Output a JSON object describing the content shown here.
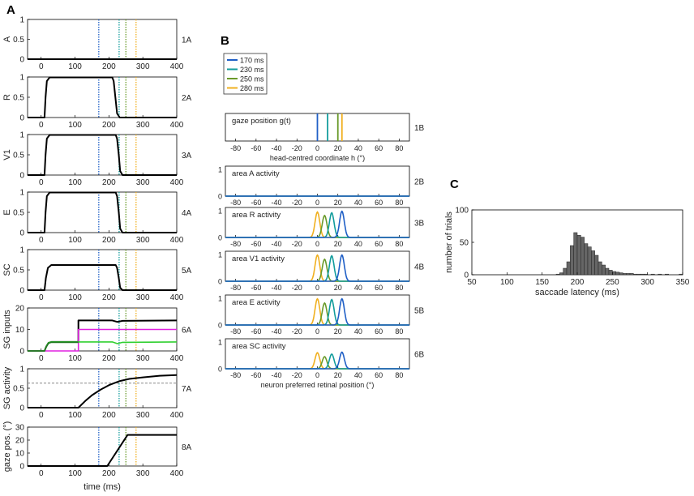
{
  "panel_labels": {
    "a": "A",
    "b": "B",
    "c": "C"
  },
  "colors": {
    "t170": "#1f5fc6",
    "t230": "#129c9c",
    "t250": "#6a9a2a",
    "t280": "#f0b020",
    "black": "#000000",
    "magenta": "#e020e0",
    "green": "#30d030",
    "darkgreen": "#207a20",
    "gray_bar": "#666666"
  },
  "legend": {
    "entries": [
      {
        "label": "170 ms",
        "color_key": "t170"
      },
      {
        "label": "230 ms",
        "color_key": "t230"
      },
      {
        "label": "250 ms",
        "color_key": "t250"
      },
      {
        "label": "280 ms",
        "color_key": "t280"
      }
    ]
  },
  "chart_data": [
    {
      "id": "panelA",
      "type": "line",
      "times_ms": [
        170,
        230,
        250,
        280
      ],
      "xlim": [
        -40,
        400
      ],
      "xticks": [
        0,
        100,
        200,
        300,
        400
      ],
      "xlabel": "time (ms)",
      "subplots": [
        {
          "ylabel": "A",
          "tag": "1A",
          "ylim": [
            0,
            1
          ],
          "yticks": [
            0,
            0.5,
            1
          ],
          "ytick_labels": [
            "0",
            "0.5",
            "1"
          ],
          "series": [
            {
              "name": "A",
              "color_key": "black",
              "points": [
                [
                  -40,
                  0
                ],
                [
                  400,
                  0
                ]
              ]
            }
          ]
        },
        {
          "ylabel": "R",
          "tag": "2A",
          "ylim": [
            0,
            1
          ],
          "yticks": [
            0,
            0.5,
            1
          ],
          "ytick_labels": [
            "0",
            "0.5",
            "1"
          ],
          "series": [
            {
              "name": "R",
              "color_key": "black",
              "points": [
                [
                  -40,
                  0
                ],
                [
                  10,
                  0
                ],
                [
                  13,
                  0.5
                ],
                [
                  17,
                  0.9
                ],
                [
                  25,
                  0.99
                ],
                [
                  210,
                  0.99
                ],
                [
                  214,
                  0.9
                ],
                [
                  219,
                  0.5
                ],
                [
                  224,
                  0.1
                ],
                [
                  232,
                  0
                ],
                [
                  400,
                  0
                ]
              ]
            }
          ]
        },
        {
          "ylabel": "V1",
          "tag": "3A",
          "ylim": [
            0,
            1
          ],
          "yticks": [
            0,
            0.5,
            1
          ],
          "ytick_labels": [
            "0",
            "0.5",
            "1"
          ],
          "series": [
            {
              "name": "V1",
              "color_key": "black",
              "points": [
                [
                  -40,
                  0
                ],
                [
                  10,
                  0
                ],
                [
                  13,
                  0.5
                ],
                [
                  17,
                  0.9
                ],
                [
                  25,
                  0.99
                ],
                [
                  220,
                  0.99
                ],
                [
                  224,
                  0.9
                ],
                [
                  229,
                  0.5
                ],
                [
                  233,
                  0.1
                ],
                [
                  240,
                  0
                ],
                [
                  400,
                  0
                ]
              ]
            }
          ]
        },
        {
          "ylabel": "E",
          "tag": "4A",
          "ylim": [
            0,
            1
          ],
          "yticks": [
            0,
            0.5,
            1
          ],
          "ytick_labels": [
            "0",
            "0.5",
            "1"
          ],
          "series": [
            {
              "name": "E",
              "color_key": "black",
              "points": [
                [
                  -40,
                  0
                ],
                [
                  10,
                  0
                ],
                [
                  13,
                  0.5
                ],
                [
                  17,
                  0.9
                ],
                [
                  25,
                  0.99
                ],
                [
                  220,
                  0.99
                ],
                [
                  224,
                  0.9
                ],
                [
                  229,
                  0.5
                ],
                [
                  233,
                  0.1
                ],
                [
                  240,
                  0
                ],
                [
                  400,
                  0
                ]
              ]
            }
          ]
        },
        {
          "ylabel": "SC",
          "tag": "5A",
          "ylim": [
            0,
            1
          ],
          "yticks": [
            0,
            0.5,
            1
          ],
          "ytick_labels": [
            "0",
            "0.5",
            "1"
          ],
          "series": [
            {
              "name": "SC",
              "color_key": "black",
              "points": [
                [
                  -40,
                  0
                ],
                [
                  10,
                  0
                ],
                [
                  14,
                  0.3
                ],
                [
                  20,
                  0.55
                ],
                [
                  30,
                  0.62
                ],
                [
                  220,
                  0.62
                ],
                [
                  224,
                  0.55
                ],
                [
                  229,
                  0.3
                ],
                [
                  233,
                  0.06
                ],
                [
                  240,
                  0
                ],
                [
                  400,
                  0
                ]
              ]
            }
          ]
        },
        {
          "ylabel": "SG inputs",
          "tag": "6A",
          "ylim": [
            0,
            20
          ],
          "yticks": [
            0,
            10,
            20
          ],
          "ytick_labels": [
            "0",
            "10",
            "20"
          ],
          "series": [
            {
              "name": "total",
              "color_key": "black",
              "points": [
                [
                  -40,
                  0
                ],
                [
                  10,
                  0
                ],
                [
                  15,
                  2
                ],
                [
                  22,
                  3.8
                ],
                [
                  30,
                  4.2
                ],
                [
                  110,
                  4.2
                ],
                [
                  110,
                  14.2
                ],
                [
                  210,
                  14.2
                ],
                [
                  225,
                  13.5
                ],
                [
                  240,
                  14
                ],
                [
                  400,
                  14.2
                ]
              ]
            },
            {
              "name": "magenta",
              "color_key": "magenta",
              "points": [
                [
                  -40,
                  0
                ],
                [
                  110,
                  0
                ],
                [
                  110,
                  10
                ],
                [
                  400,
                  10
                ]
              ]
            },
            {
              "name": "green",
              "color_key": "green",
              "points": [
                [
                  -40,
                  0
                ],
                [
                  10,
                  0
                ],
                [
                  15,
                  2
                ],
                [
                  22,
                  3.8
                ],
                [
                  30,
                  4.2
                ],
                [
                  210,
                  4.2
                ],
                [
                  225,
                  3.4
                ],
                [
                  240,
                  4
                ],
                [
                  400,
                  4.2
                ]
              ]
            },
            {
              "name": "darkgreen",
              "color_key": "darkgreen",
              "points": [
                [
                  -40,
                  0
                ],
                [
                  10,
                  0
                ],
                [
                  15,
                  1.8
                ],
                [
                  22,
                  3.6
                ],
                [
                  30,
                  4
                ],
                [
                  110,
                  4
                ]
              ]
            }
          ]
        },
        {
          "ylabel": "SG activity",
          "tag": "7A",
          "ylim": [
            0,
            1
          ],
          "yticks": [
            0,
            0.5,
            1
          ],
          "ytick_labels": [
            "0",
            "0.5",
            "1"
          ],
          "threshold": 0.63,
          "series": [
            {
              "name": "SG",
              "color_key": "black",
              "points": [
                [
                  -40,
                  0
                ],
                [
                  110,
                  0
                ],
                [
                  130,
                  0.17
                ],
                [
                  150,
                  0.32
                ],
                [
                  175,
                  0.46
                ],
                [
                  200,
                  0.58
                ],
                [
                  230,
                  0.68
                ],
                [
                  260,
                  0.74
                ],
                [
                  300,
                  0.78
                ],
                [
                  350,
                  0.82
                ],
                [
                  400,
                  0.84
                ]
              ]
            }
          ]
        },
        {
          "ylabel": "gaze pos. (°)",
          "tag": "8A",
          "ylim": [
            0,
            30
          ],
          "yticks": [
            0,
            10,
            20,
            30
          ],
          "ytick_labels": [
            "0",
            "10",
            "20",
            "30"
          ],
          "series": [
            {
              "name": "gaze",
              "color_key": "black",
              "points": [
                [
                  -40,
                  0
                ],
                [
                  195,
                  0
                ],
                [
                  255,
                  24
                ],
                [
                  400,
                  24
                ]
              ]
            }
          ]
        }
      ]
    },
    {
      "id": "panelB",
      "type": "line",
      "xlim": [
        -90,
        90
      ],
      "xticks": [
        -80,
        -60,
        -40,
        -20,
        0,
        20,
        40,
        60,
        80
      ],
      "gaze_subplot": {
        "tag": "1B",
        "inner_label": "gaze position g(t)",
        "xlabel": "head-centred coordinate h (°)",
        "gaze_positions": [
          0,
          10,
          20,
          24
        ]
      },
      "activity_subplots": [
        {
          "tag": "2B",
          "inner_label": "area A activity",
          "ylim": [
            0,
            1
          ],
          "yticks": [
            0,
            1
          ],
          "ytick_labels": [
            "0",
            "1"
          ],
          "bumps": [
            {
              "color_key": "t170",
              "center": 0,
              "amp": 0
            },
            {
              "color_key": "t230",
              "center": 0,
              "amp": 0
            },
            {
              "color_key": "t250",
              "center": 0,
              "amp": 0
            },
            {
              "color_key": "t280",
              "center": 0,
              "amp": 0
            }
          ]
        },
        {
          "tag": "3B",
          "inner_label": "area R activity",
          "ylim": [
            0,
            1
          ],
          "yticks": [
            0,
            1
          ],
          "ytick_labels": [
            "0",
            "1"
          ],
          "bumps": [
            {
              "color_key": "t170",
              "center": 24,
              "amp": 0.98
            },
            {
              "color_key": "t230",
              "center": 14,
              "amp": 0.92
            },
            {
              "color_key": "t250",
              "center": 7,
              "amp": 0.82
            },
            {
              "color_key": "t280",
              "center": 0,
              "amp": 0.95
            }
          ]
        },
        {
          "tag": "4B",
          "inner_label": "area V1 activity",
          "ylim": [
            0,
            1
          ],
          "yticks": [
            0,
            1
          ],
          "ytick_labels": [
            "0",
            "1"
          ],
          "bumps": [
            {
              "color_key": "t170",
              "center": 24,
              "amp": 0.98
            },
            {
              "color_key": "t230",
              "center": 14,
              "amp": 0.95
            },
            {
              "color_key": "t250",
              "center": 7,
              "amp": 0.82
            },
            {
              "color_key": "t280",
              "center": 0,
              "amp": 0.98
            }
          ]
        },
        {
          "tag": "5B",
          "inner_label": "area E activity",
          "ylim": [
            0,
            1
          ],
          "yticks": [
            0,
            1
          ],
          "ytick_labels": [
            "0",
            "1"
          ],
          "bumps": [
            {
              "color_key": "t170",
              "center": 24,
              "amp": 0.98
            },
            {
              "color_key": "t230",
              "center": 14,
              "amp": 0.95
            },
            {
              "color_key": "t250",
              "center": 7,
              "amp": 0.82
            },
            {
              "color_key": "t280",
              "center": 0,
              "amp": 0.98
            }
          ]
        },
        {
          "tag": "6B",
          "inner_label": "area SC activity",
          "ylim": [
            0,
            1
          ],
          "yticks": [
            0,
            1
          ],
          "ytick_labels": [
            "0",
            "1"
          ],
          "xlabel": "neuron preferred retinal position (°)",
          "bumps": [
            {
              "color_key": "t170",
              "center": 24,
              "amp": 0.62
            },
            {
              "color_key": "t230",
              "center": 14,
              "amp": 0.55
            },
            {
              "color_key": "t250",
              "center": 7,
              "amp": 0.45
            },
            {
              "color_key": "t280",
              "center": 0,
              "amp": 0.6
            }
          ]
        }
      ]
    },
    {
      "id": "panelC",
      "type": "bar",
      "xlabel": "saccade latency (ms)",
      "ylabel": "number of trials",
      "xlim": [
        50,
        350
      ],
      "ylim": [
        0,
        100
      ],
      "xticks": [
        50,
        100,
        150,
        200,
        250,
        300,
        350
      ],
      "yticks": [
        0,
        50,
        100
      ],
      "bin_width": 5,
      "bin_starts": [
        170,
        175,
        180,
        185,
        190,
        195,
        200,
        205,
        210,
        215,
        220,
        225,
        230,
        235,
        240,
        245,
        250,
        255,
        260,
        265,
        270,
        275,
        280,
        285,
        290,
        295,
        305,
        315,
        325,
        345
      ],
      "counts": [
        1,
        3,
        10,
        20,
        45,
        65,
        61,
        58,
        48,
        43,
        37,
        30,
        20,
        15,
        10,
        7,
        5,
        4,
        3,
        2,
        2,
        2,
        1,
        1,
        1,
        1,
        1,
        1,
        1,
        1
      ]
    }
  ]
}
